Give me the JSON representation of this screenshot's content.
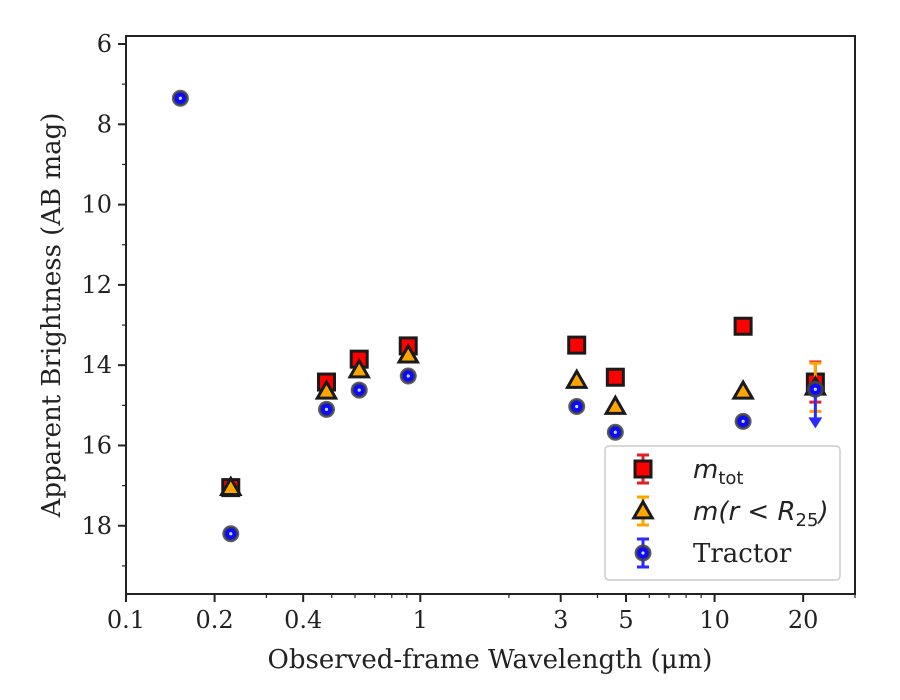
{
  "chart_data": {
    "type": "scatter",
    "xlabel": "Observed-frame Wavelength (μm)",
    "ylabel": "Apparent Brightness (AB mag)",
    "xscale": "log",
    "yinverted": true,
    "xlim": [
      0.1,
      30
    ],
    "ylim": [
      19.7,
      5.8
    ],
    "xticks": [
      {
        "value": 0.1,
        "label": "0.1"
      },
      {
        "value": 0.2,
        "label": "0.2"
      },
      {
        "value": 0.4,
        "label": "0.4"
      },
      {
        "value": 1,
        "label": "1"
      },
      {
        "value": 3,
        "label": "3"
      },
      {
        "value": 5,
        "label": "5"
      },
      {
        "value": 10,
        "label": "10"
      },
      {
        "value": 20,
        "label": "20"
      }
    ],
    "yticks": [
      {
        "value": 6,
        "label": "6"
      },
      {
        "value": 8,
        "label": "8"
      },
      {
        "value": 10,
        "label": "10"
      },
      {
        "value": 12,
        "label": "12"
      },
      {
        "value": 14,
        "label": "14"
      },
      {
        "value": 16,
        "label": "16"
      },
      {
        "value": 18,
        "label": "18"
      }
    ],
    "grid": false,
    "legend_position": "bottom-right",
    "series": [
      {
        "name": "m_tot",
        "legend_main": "m",
        "legend_sub": "tot",
        "marker": "square",
        "color": "#ff0000",
        "errcolor": "#e02020",
        "points": [
          {
            "x": 0.227,
            "y": 17.05
          },
          {
            "x": 0.48,
            "y": 14.42
          },
          {
            "x": 0.62,
            "y": 13.85
          },
          {
            "x": 0.91,
            "y": 13.52
          },
          {
            "x": 3.4,
            "y": 13.5
          },
          {
            "x": 4.6,
            "y": 14.3
          },
          {
            "x": 12.5,
            "y": 13.03
          },
          {
            "x": 22.0,
            "y": 14.42,
            "err": 0.5
          }
        ]
      },
      {
        "name": "m(r<R25)",
        "legend_main": "m(r < R",
        "legend_sub": "25",
        "legend_tail": ")",
        "marker": "triangle",
        "color": "#ffa500",
        "errcolor": "#ffa500",
        "points": [
          {
            "x": 0.227,
            "y": 17.05
          },
          {
            "x": 0.48,
            "y": 14.65
          },
          {
            "x": 0.62,
            "y": 14.12
          },
          {
            "x": 0.91,
            "y": 13.75
          },
          {
            "x": 3.4,
            "y": 14.38
          },
          {
            "x": 4.6,
            "y": 15.03
          },
          {
            "x": 12.5,
            "y": 14.65
          },
          {
            "x": 22.0,
            "y": 14.55,
            "err": 0.6
          }
        ]
      },
      {
        "name": "Tractor",
        "legend_main": "Tractor",
        "marker": "circle",
        "color": "#0a0aff",
        "errcolor": "#2a2aff",
        "points": [
          {
            "x": 0.153,
            "y": 7.35
          },
          {
            "x": 0.227,
            "y": 18.2
          },
          {
            "x": 0.48,
            "y": 15.1
          },
          {
            "x": 0.62,
            "y": 14.62
          },
          {
            "x": 0.91,
            "y": 14.27
          },
          {
            "x": 3.4,
            "y": 15.03
          },
          {
            "x": 4.6,
            "y": 15.67
          },
          {
            "x": 12.5,
            "y": 15.4
          },
          {
            "x": 22.0,
            "y": 14.6,
            "upper_limit_to": 15.45
          }
        ]
      }
    ]
  }
}
